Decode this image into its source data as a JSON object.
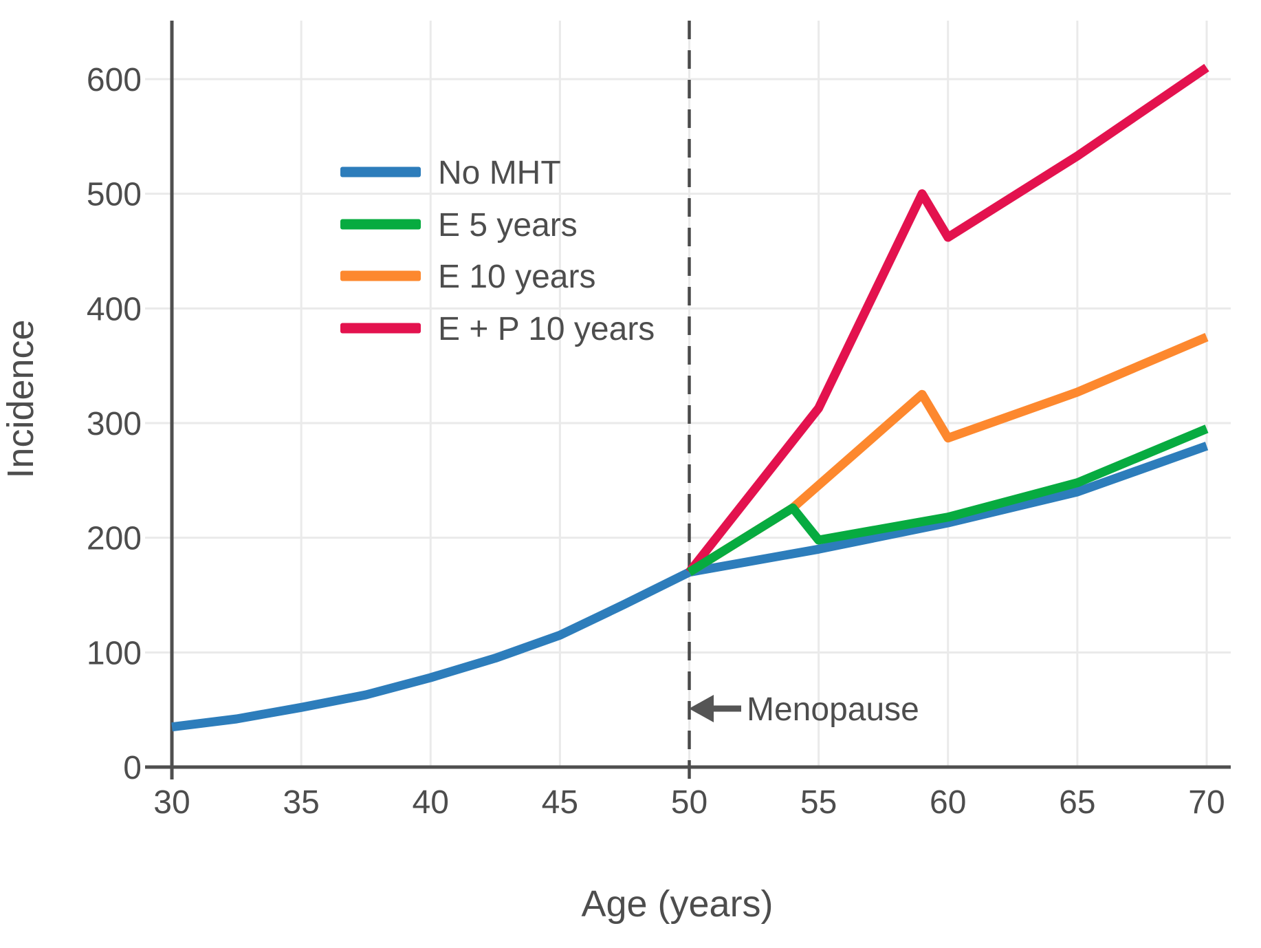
{
  "figure": {
    "background_color": "#ffffff",
    "text_color": "#4d4d4d",
    "grid_color": "#eaeaea",
    "axis_color": "#4f4f4f",
    "dashed_line_color": "#4a4a4a"
  },
  "chart_data": {
    "type": "line",
    "title": "",
    "xlabel": "Age (years)",
    "ylabel": "Incidence",
    "xlim": [
      30,
      70
    ],
    "ylim": [
      0,
      650
    ],
    "x_ticks": [
      30,
      35,
      40,
      45,
      50,
      55,
      60,
      65,
      70
    ],
    "y_ticks": [
      0,
      100,
      200,
      300,
      400,
      500,
      600
    ],
    "grid": true,
    "legend_position": "upper left inside plot",
    "vline": {
      "x": 50,
      "style": "dashed",
      "meaning": "menopause age"
    },
    "annotation": {
      "text": "Menopause",
      "arrow_direction": "left",
      "x": 50,
      "y": 51
    },
    "series": [
      {
        "name": "No MHT",
        "color": "#2d7dbb",
        "points": [
          [
            30,
            35
          ],
          [
            32.5,
            42
          ],
          [
            35,
            52
          ],
          [
            37.5,
            63
          ],
          [
            40,
            78
          ],
          [
            42.5,
            95
          ],
          [
            45,
            115
          ],
          [
            47.5,
            142
          ],
          [
            50,
            170
          ],
          [
            55,
            190
          ],
          [
            60,
            213
          ],
          [
            65,
            240
          ],
          [
            70,
            280
          ]
        ]
      },
      {
        "name": "E 5 years",
        "color": "#07ab40",
        "points": [
          [
            50,
            170
          ],
          [
            54,
            226
          ],
          [
            55,
            198
          ],
          [
            60,
            218
          ],
          [
            65,
            248
          ],
          [
            70,
            295
          ]
        ]
      },
      {
        "name": "E 10 years",
        "color": "#fd882e",
        "points": [
          [
            50,
            170
          ],
          [
            54,
            226
          ],
          [
            59,
            325
          ],
          [
            60,
            287
          ],
          [
            65,
            327
          ],
          [
            70,
            375
          ]
        ]
      },
      {
        "name": "E + P 10 years",
        "color": "#e3124e",
        "points": [
          [
            50,
            170
          ],
          [
            55,
            313
          ],
          [
            59,
            500
          ],
          [
            60,
            462
          ],
          [
            65,
            533
          ],
          [
            70,
            610
          ]
        ]
      }
    ]
  }
}
